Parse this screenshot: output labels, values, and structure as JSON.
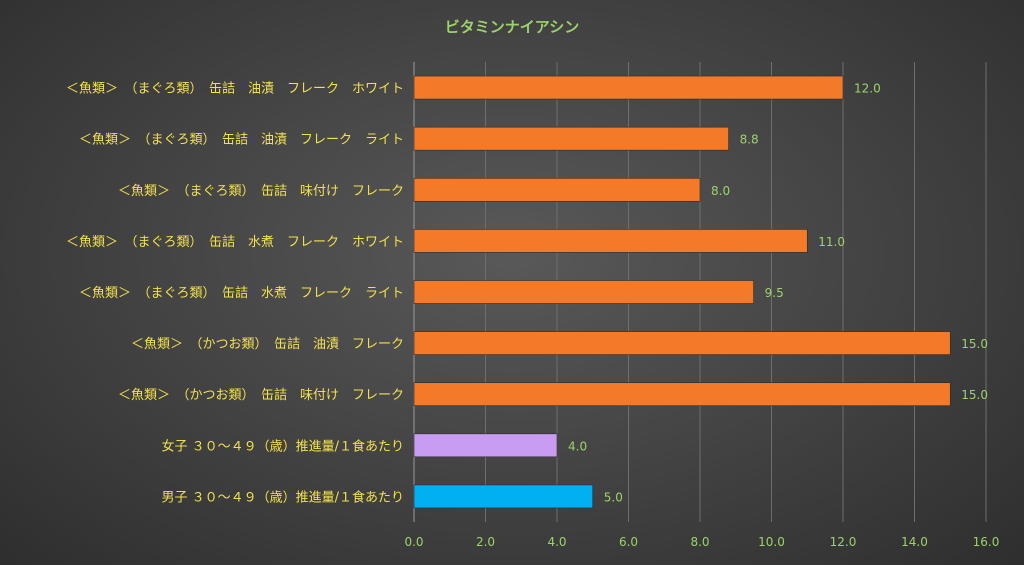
{
  "chart_data": {
    "type": "bar",
    "orientation": "horizontal",
    "title": "ビタミンナイアシン",
    "xlabel": "",
    "ylabel": "",
    "xlim": [
      0,
      16
    ],
    "ticks": [
      "0.0",
      "2.0",
      "4.0",
      "6.0",
      "8.0",
      "10.0",
      "12.0",
      "14.0",
      "16.0"
    ],
    "tick_values": [
      0,
      2,
      4,
      6,
      8,
      10,
      12,
      14,
      16
    ],
    "grid": true,
    "legend": "none",
    "categories": [
      "＜魚類＞　（まぐろ類）　缶詰　油漬　フレーク　ホワイト",
      "＜魚類＞　（まぐろ類）　缶詰　油漬　フレーク　ライト",
      "＜魚類＞　（まぐろ類）　缶詰　味付け　フレーク",
      "＜魚類＞　（まぐろ類）　缶詰　水煮　フレーク　ホワイト",
      "＜魚類＞　（まぐろ類）　缶詰　水煮　フレーク　ライト",
      "＜魚類＞　（かつお類）　缶詰　油漬　フレーク",
      "＜魚類＞　（かつお類）　缶詰　味付け　フレーク",
      "女子 ３０～４９（歳）推進量/１食あたり",
      "男子 ３０～４９（歳）推進量/１食あたり"
    ],
    "values": [
      12.0,
      8.8,
      8.0,
      11.0,
      9.5,
      15.0,
      15.0,
      4.0,
      5.0
    ],
    "value_labels": [
      "12.0",
      "8.8",
      "8.0",
      "11.0",
      "9.5",
      "15.0",
      "15.0",
      "4.0",
      "5.0"
    ],
    "bar_colors": [
      "#f47a2a",
      "#f47a2a",
      "#f47a2a",
      "#f47a2a",
      "#f47a2a",
      "#f47a2a",
      "#f47a2a",
      "#c79cf2",
      "#00b0f0"
    ]
  }
}
